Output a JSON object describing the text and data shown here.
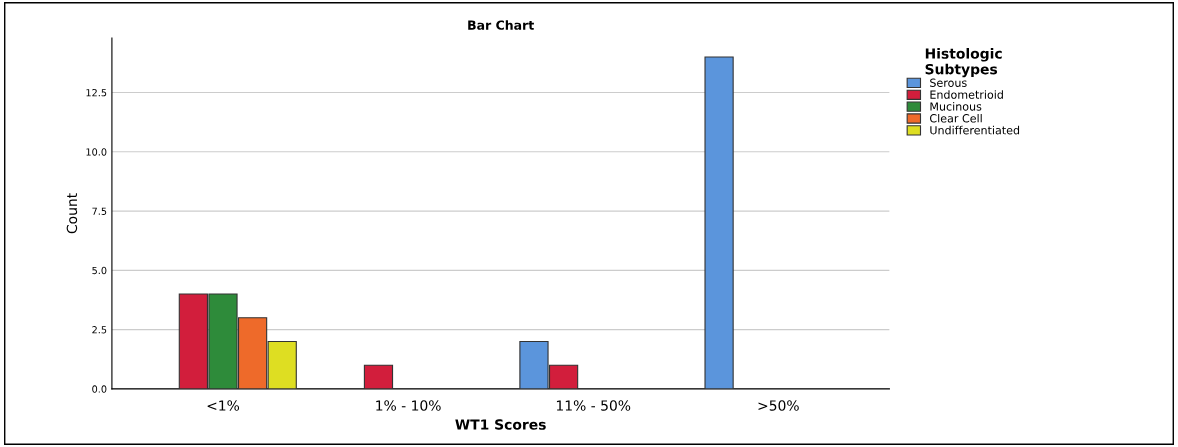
{
  "chart_data": {
    "type": "bar",
    "title": "Bar Chart",
    "xlabel": "WT1 Scores",
    "ylabel": "Count",
    "legend_title": "Histologic\nSubtypes",
    "categories": [
      "<1%",
      "1% - 10%",
      "11% - 50%",
      ">50%"
    ],
    "series": [
      {
        "name": "Serous",
        "color": "#5b95dc",
        "values": [
          0,
          0,
          2,
          14
        ]
      },
      {
        "name": "Endometrioid",
        "color": "#d21e3c",
        "values": [
          4,
          1,
          1,
          0
        ]
      },
      {
        "name": "Mucinous",
        "color": "#2e8b3a",
        "values": [
          4,
          0,
          0,
          0
        ]
      },
      {
        "name": "Clear Cell",
        "color": "#ee6a2a",
        "values": [
          3,
          0,
          0,
          0
        ]
      },
      {
        "name": "Undifferentiated",
        "color": "#dede22",
        "values": [
          2,
          0,
          0,
          0
        ]
      }
    ],
    "ylim": [
      0,
      14.8
    ],
    "yticks": [
      {
        "value": 0,
        "label": "0.0"
      },
      {
        "value": 2.5,
        "label": "2.5"
      },
      {
        "value": 5,
        "label": "5.0"
      },
      {
        "value": 7.5,
        "label": "7.5"
      },
      {
        "value": 10,
        "label": "10.0"
      },
      {
        "value": 12.5,
        "label": "12.5"
      }
    ],
    "grid": "y",
    "legend": "right"
  }
}
